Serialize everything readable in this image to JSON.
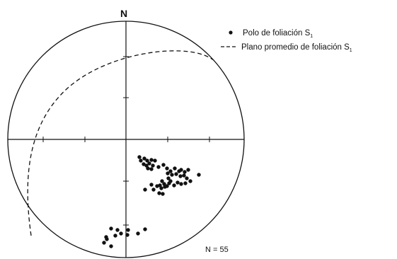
{
  "diagram": {
    "north_label": "N",
    "count_label": "N = 55"
  },
  "legend": {
    "pole_label": "Polo de foliación S",
    "pole_sub": "1",
    "plane_label": "Plano promedio de foliación S",
    "plane_sub": "1"
  },
  "colors": {
    "ink": "#111111",
    "background": "#ffffff"
  }
}
